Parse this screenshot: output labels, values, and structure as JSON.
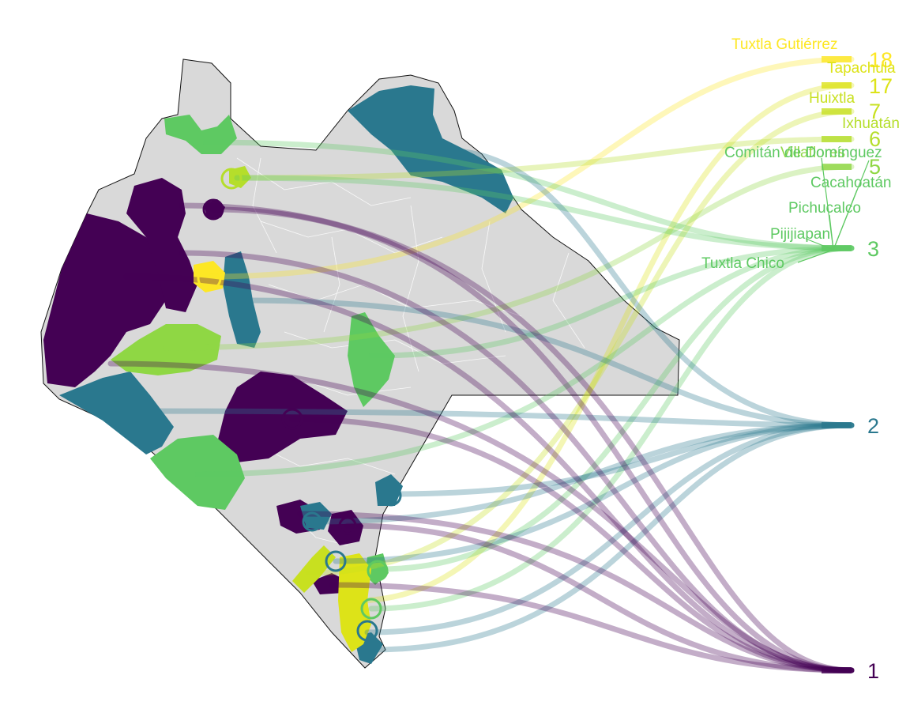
{
  "colors": {
    "1": "#440154",
    "2": "#2a788e",
    "3": "#5ec962",
    "5": "#8fd744",
    "6": "#b5de2b",
    "7": "#c8e020",
    "17": "#dde318",
    "18": "#fde725",
    "base": "#d9d9d9"
  },
  "values": [
    {
      "value": "18",
      "color_key": "18"
    },
    {
      "value": "17",
      "color_key": "17"
    },
    {
      "value": "7",
      "color_key": "7"
    },
    {
      "value": "6",
      "color_key": "6"
    },
    {
      "value": "5",
      "color_key": "5"
    },
    {
      "value": "3",
      "color_key": "3"
    },
    {
      "value": "2",
      "color_key": "2"
    },
    {
      "value": "1",
      "color_key": "1"
    }
  ],
  "municipalities": [
    {
      "name": "Tuxtla Gutiérrez",
      "value": 18
    },
    {
      "name": "Tapachula",
      "value": 17
    },
    {
      "name": "Huixtla",
      "value": 7
    },
    {
      "name": "Ixhuatán",
      "value": 6
    },
    {
      "name": "Villaflores",
      "value": 5
    },
    {
      "name": "Comitán de Domínguez",
      "value": 3
    },
    {
      "name": "Cacahoatán",
      "value": 3
    },
    {
      "name": "Pichucalco",
      "value": 3
    },
    {
      "name": "Pijijiapan",
      "value": 3
    },
    {
      "name": "Tuxtla Chico",
      "value": 3
    }
  ]
}
